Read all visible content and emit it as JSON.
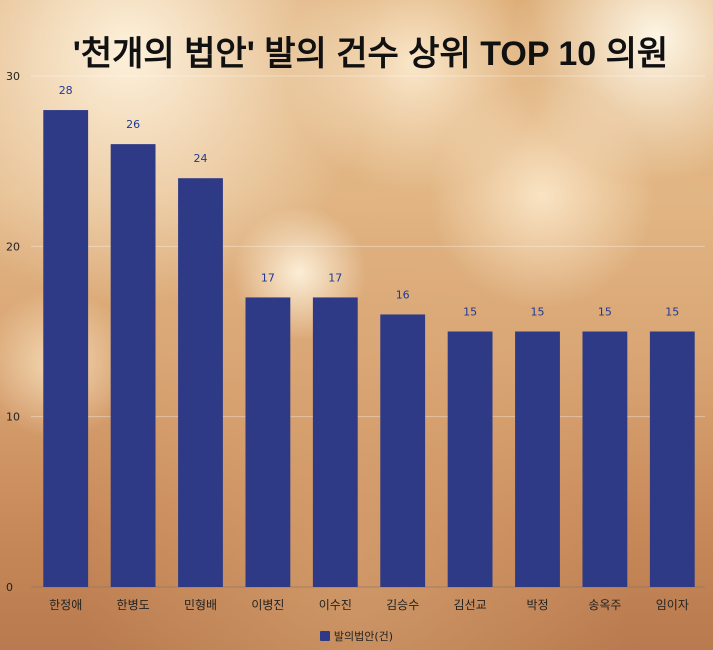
{
  "chart_data": {
    "type": "bar",
    "title": "'천개의 법안' 발의 건수 상위 TOP 10 의원",
    "categories": [
      "한정애",
      "한병도",
      "민형배",
      "이병진",
      "이수진",
      "김승수",
      "김선교",
      "박정",
      "송옥주",
      "임이자"
    ],
    "series": [
      {
        "name": "발의법안(건)",
        "values": [
          28,
          26,
          24,
          17,
          17,
          16,
          15,
          15,
          15,
          15
        ],
        "color": "#2e3a85"
      }
    ],
    "ylim": [
      0,
      30
    ],
    "yticks": [
      0,
      10,
      20,
      30
    ],
    "grid": true,
    "legend_position": "bottom"
  }
}
